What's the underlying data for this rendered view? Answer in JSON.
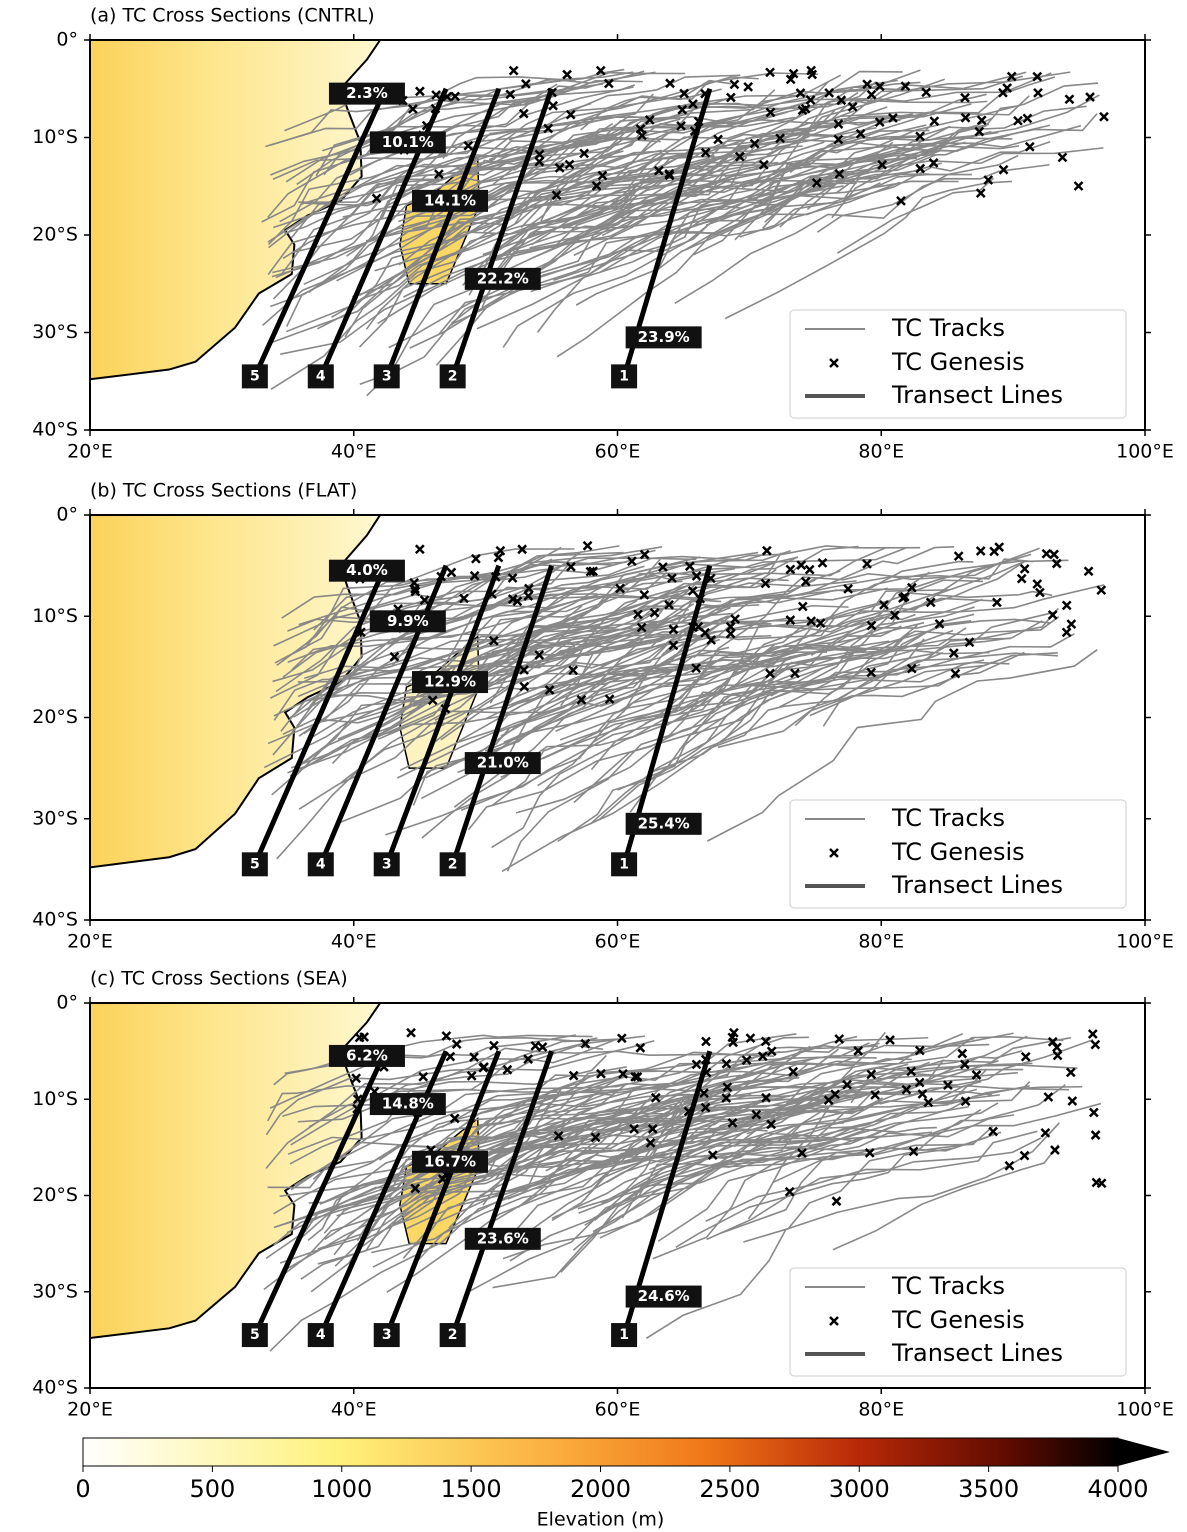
{
  "panels": [
    {
      "title": "(a) TC Cross Sections (CNTRL)",
      "transect_percent": [
        "23.9%",
        "22.2%",
        "14.1%",
        "10.1%",
        "2.3%"
      ]
    },
    {
      "title": "(b) TC Cross Sections (FLAT)",
      "transect_percent": [
        "25.4%",
        "21.0%",
        "12.9%",
        "9.9%",
        "4.0%"
      ]
    },
    {
      "title": "(c) TC Cross Sections (SEA)",
      "transect_percent": [
        "24.6%",
        "23.6%",
        "16.7%",
        "14.8%",
        "6.2%"
      ]
    }
  ],
  "transect_labels": [
    "1",
    "2",
    "3",
    "4",
    "5"
  ],
  "legend": [
    "TC Tracks",
    "TC Genesis",
    "Transect Lines"
  ],
  "map": {
    "xlim": [
      20,
      100
    ],
    "ylim": [
      0,
      -40
    ],
    "xticks": [
      {
        "value": 20,
        "label": "20°E"
      },
      {
        "value": 40,
        "label": "40°E"
      },
      {
        "value": 60,
        "label": "60°E"
      },
      {
        "value": 80,
        "label": "80°E"
      },
      {
        "value": 100,
        "label": "100°E"
      }
    ],
    "yticks": [
      {
        "value": 0,
        "label": "0°"
      },
      {
        "value": -10,
        "label": "10°S"
      },
      {
        "value": -20,
        "label": "20°S"
      },
      {
        "value": -30,
        "label": "30°S"
      },
      {
        "value": -40,
        "label": "40°S"
      }
    ]
  },
  "colorbar": {
    "label": "Elevation (m)",
    "lim": [
      0,
      4000
    ],
    "ticks": [
      0,
      500,
      1000,
      1500,
      2000,
      2500,
      3000,
      3500,
      4000
    ]
  }
}
